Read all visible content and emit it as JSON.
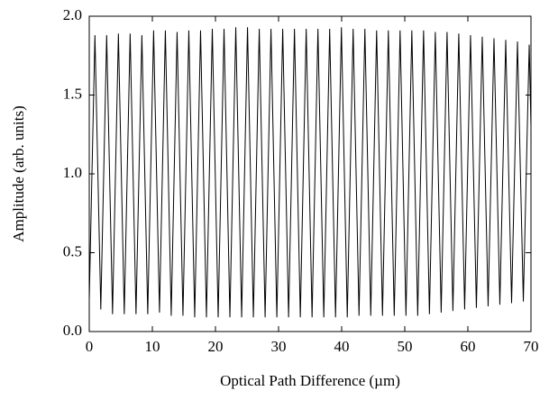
{
  "chart_data": {
    "type": "line",
    "xlabel": "Optical Path Difference (µm)",
    "ylabel": "Amplitude (arb. units)",
    "x": [
      0,
      0.9,
      1.83,
      2.76,
      3.69,
      4.62,
      5.55,
      6.48,
      7.41,
      8.34,
      9.27,
      10.2,
      11.13,
      12.06,
      12.99,
      13.92,
      14.85,
      15.78,
      16.71,
      17.64,
      18.57,
      19.5,
      20.43,
      21.36,
      22.29,
      23.22,
      24.15,
      25.08,
      26.01,
      26.94,
      27.87,
      28.8,
      29.73,
      30.66,
      31.59,
      32.52,
      33.45,
      34.38,
      35.31,
      36.24,
      37.17,
      38.1,
      39.03,
      39.96,
      40.89,
      41.82,
      42.75,
      43.68,
      44.61,
      45.54,
      46.47,
      47.4,
      48.33,
      49.26,
      50.19,
      51.12,
      52.05,
      52.98,
      53.91,
      54.84,
      55.77,
      56.7,
      57.63,
      58.56,
      59.49,
      60.42,
      61.35,
      62.28,
      63.21,
      64.14,
      65.07,
      66.0,
      66.93,
      67.86,
      68.79,
      69.72,
      70
    ],
    "series": [
      {
        "color": "#000000",
        "values": [
          0.2,
          1.88,
          0.14,
          1.88,
          0.11,
          1.89,
          0.11,
          1.89,
          0.11,
          1.88,
          0.11,
          1.91,
          0.12,
          1.91,
          0.1,
          1.9,
          0.1,
          1.91,
          0.09,
          1.91,
          0.09,
          1.92,
          0.09,
          1.92,
          0.09,
          1.93,
          0.09,
          1.93,
          0.09,
          1.92,
          0.09,
          1.92,
          0.09,
          1.92,
          0.09,
          1.92,
          0.09,
          1.92,
          0.09,
          1.92,
          0.09,
          1.92,
          0.09,
          1.93,
          0.09,
          1.92,
          0.1,
          1.92,
          0.1,
          1.91,
          0.1,
          1.91,
          0.1,
          1.91,
          0.1,
          1.91,
          0.1,
          1.91,
          0.11,
          1.9,
          0.12,
          1.9,
          0.13,
          1.89,
          0.14,
          1.88,
          0.15,
          1.87,
          0.16,
          1.86,
          0.17,
          1.85,
          0.18,
          1.84,
          0.19,
          1.82,
          1.3
        ]
      }
    ],
    "xlim": [
      0,
      70
    ],
    "xticks": [
      0,
      10,
      20,
      30,
      40,
      50,
      60,
      70
    ],
    "ylim": [
      0,
      2
    ],
    "yticks": [
      {
        "value": 0,
        "label": "0.0"
      },
      0.5,
      {
        "value": 1,
        "label": "1.0"
      },
      1.5,
      {
        "value": 2,
        "label": "2.0"
      }
    ],
    "grid": false
  }
}
